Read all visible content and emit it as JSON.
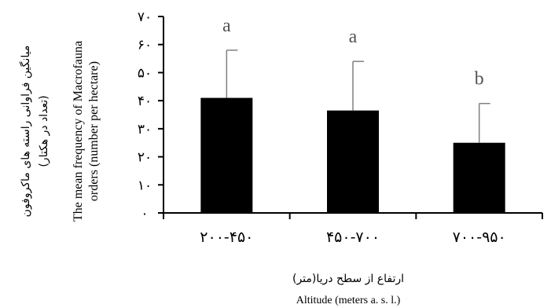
{
  "chart_data": {
    "type": "bar",
    "categories": [
      "۲۰۰-۴۵۰",
      "۴۵۰-۷۰۰",
      "۷۰۰-۹۵۰"
    ],
    "values": [
      41,
      36.5,
      25
    ],
    "error_upper": [
      58,
      54,
      39
    ],
    "significance_letters": [
      "a",
      "a",
      "b"
    ],
    "ylim": [
      0,
      70
    ],
    "yticks": [
      0,
      10,
      20,
      30,
      40,
      50,
      60,
      70
    ],
    "ytick_labels": [
      "۰",
      "۱۰",
      "۲۰",
      "۳۰",
      "۴۰",
      "۵۰",
      "۶۰",
      "۷۰"
    ],
    "xlabel_fa": "ارتفاع از سطح دریا(متر)",
    "xlabel_en": "Altitude (meters a. s. l.)",
    "ylabel_fa_line1": "میانگین فراوانی راسته های ماکروفون",
    "ylabel_fa_line2": "(تعداد در هکتار)",
    "ylabel_en_line1": "The mean frequency of Macrofauna",
    "ylabel_en_line2": "orders  (number per hectare)",
    "bar_color": "#000000",
    "error_color": "#808080",
    "grid": false
  }
}
